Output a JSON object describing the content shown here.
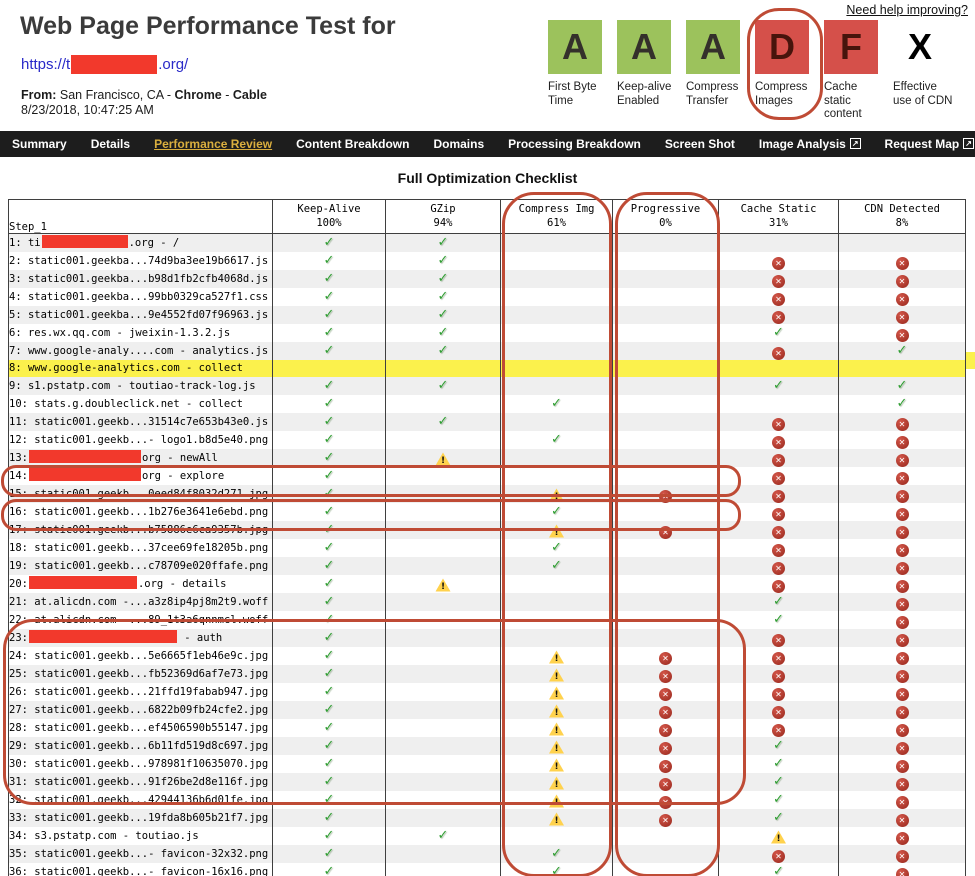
{
  "colors": {
    "annotation_red": "#bf4b35",
    "redaction_red": "#f2392c",
    "highlight_yellow": "#fbf14c",
    "grade_green": "#9cc25c",
    "grade_red": "#d5504a",
    "check_green": "#2f9e32",
    "error_red": "#96271c",
    "warn_yellow": "#ffd24d",
    "nav_bg": "#1d1d1d",
    "nav_active_gold": "#d9ae3e",
    "link_blue": "#2929c8"
  },
  "icons": {
    "check": "✓",
    "error": "✕",
    "warn": "!",
    "external_link": "↗"
  },
  "header": {
    "title": "Web Page Performance Test for",
    "url_prefix": "https://t",
    "url_suffix": ".org/",
    "from_label": "From:",
    "from_location": " San Francisco, CA - ",
    "from_browser": "Chrome",
    "from_separator": " - ",
    "from_connection": "Cable",
    "datetime": "8/23/2018, 10:47:25 AM",
    "help_link": "Need help improving?"
  },
  "grades": [
    {
      "letter": "A",
      "label": "First Byte Time",
      "color": "#9cc25c",
      "letter_color": "#34302b"
    },
    {
      "letter": "A",
      "label": "Keep-alive Enabled",
      "color": "#9cc25c",
      "letter_color": "#34302b"
    },
    {
      "letter": "A",
      "label": "Compress Transfer",
      "color": "#9cc25c",
      "letter_color": "#34302b"
    },
    {
      "letter": "D",
      "label": "Compress Images",
      "color": "#d5504a",
      "letter_color": "#47140c",
      "circled": true
    },
    {
      "letter": "F",
      "label": "Cache static content",
      "color": "#d5504a",
      "letter_color": "#47140c"
    },
    {
      "letter": "X",
      "label": "Effective use of CDN",
      "color": "transparent",
      "letter_color": "#000000"
    }
  ],
  "nav": {
    "tabs": [
      {
        "label": "Summary"
      },
      {
        "label": "Details"
      },
      {
        "label": "Performance Review",
        "active": true
      },
      {
        "label": "Content Breakdown"
      },
      {
        "label": "Domains"
      },
      {
        "label": "Processing Breakdown"
      },
      {
        "label": "Screen Shot"
      },
      {
        "label": "Image Analysis",
        "external": true
      },
      {
        "label": "Request Map",
        "external": true
      }
    ]
  },
  "checklist": {
    "title": "Full Optimization Checklist",
    "step_label": "Step_1",
    "columns": [
      {
        "name": "Keep-Alive",
        "pct": "100%"
      },
      {
        "name": "GZip",
        "pct": "94%"
      },
      {
        "name": "Compress Img",
        "pct": "61%",
        "circled": true
      },
      {
        "name": "Progressive",
        "pct": "0%",
        "circled": true
      },
      {
        "name": "Cache Static",
        "pct": "31%"
      },
      {
        "name": "CDN Detected",
        "pct": "8%"
      }
    ],
    "rows": [
      {
        "pre": "1: ti",
        "redact": 86,
        "post": ".org - /",
        "cells": [
          "check",
          "check",
          "",
          "",
          "",
          ""
        ]
      },
      {
        "pre": "2: static001.geekba...74d9ba3ee19b6617.js",
        "cells": [
          "check",
          "check",
          "",
          "",
          "error",
          "error"
        ]
      },
      {
        "pre": "3: static001.geekba...b98d1fb2cfb4068d.js",
        "cells": [
          "check",
          "check",
          "",
          "",
          "error",
          "error"
        ]
      },
      {
        "pre": "4: static001.geekba...99bb0329ca527f1.css",
        "cells": [
          "check",
          "check",
          "",
          "",
          "error",
          "error"
        ]
      },
      {
        "pre": "5: static001.geekba...9e4552fd07f96963.js",
        "cells": [
          "check",
          "check",
          "",
          "",
          "error",
          "error"
        ]
      },
      {
        "pre": "6: res.wx.qq.com - jweixin-1.3.2.js",
        "cells": [
          "check",
          "check",
          "",
          "",
          "check",
          "error"
        ]
      },
      {
        "pre": "7: www.google-analy....com - analytics.js",
        "cells": [
          "check",
          "check",
          "",
          "",
          "error",
          "check"
        ]
      },
      {
        "pre": "8: www.google-analytics.com - collect",
        "cells": [
          "",
          "",
          "",
          "",
          "",
          ""
        ],
        "highlight": true
      },
      {
        "pre": "9: s1.pstatp.com - toutiao-track-log.js",
        "cells": [
          "check",
          "check",
          "",
          "",
          "check",
          "check"
        ]
      },
      {
        "pre": "10: stats.g.doubleclick.net - collect",
        "cells": [
          "check",
          "",
          "check",
          "",
          "",
          "check"
        ]
      },
      {
        "pre": "11: static001.geekb...31514c7e653b43e0.js",
        "cells": [
          "check",
          "check",
          "",
          "",
          "error",
          "error"
        ]
      },
      {
        "pre": "12: static001.geekb...- logo1.b8d5e40.png",
        "cells": [
          "check",
          "",
          "check",
          "",
          "error",
          "error"
        ]
      },
      {
        "pre": "13:",
        "redact": 112,
        "post": "org - newAll",
        "cells": [
          "check",
          "warn",
          "",
          "",
          "error",
          "error"
        ]
      },
      {
        "pre": "14:",
        "redact": 112,
        "post": "org - explore",
        "cells": [
          "check",
          "",
          "",
          "",
          "error",
          "error"
        ]
      },
      {
        "pre": "15: static001.geekb...0eed84f8032d271.jpg",
        "cells": [
          "check",
          "",
          "warn",
          "error",
          "error",
          "error"
        ],
        "circled": true
      },
      {
        "pre": "16: static001.geekb...1b276e3641e6ebd.png",
        "cells": [
          "check",
          "",
          "check",
          "",
          "error",
          "error"
        ]
      },
      {
        "pre": "17: static001.geekb...b75886e6ca9357b.jpg",
        "cells": [
          "check",
          "",
          "warn",
          "error",
          "error",
          "error"
        ],
        "circled": true
      },
      {
        "pre": "18: static001.geekb...37cee69fe18205b.png",
        "cells": [
          "check",
          "",
          "check",
          "",
          "error",
          "error"
        ]
      },
      {
        "pre": "19: static001.geekb...c78709e020ffafe.png",
        "cells": [
          "check",
          "",
          "check",
          "",
          "error",
          "error"
        ]
      },
      {
        "pre": "20:",
        "redact": 108,
        "post": ".org - details",
        "cells": [
          "check",
          "warn",
          "",
          "",
          "error",
          "error"
        ]
      },
      {
        "pre": "21: at.alicdn.com -...a3z8ip4pj8m2t9.woff",
        "cells": [
          "check",
          "",
          "",
          "",
          "check",
          "error"
        ]
      },
      {
        "pre": "22: at.alicdn.com -...89_1t3a6qnnmcl.woff",
        "cells": [
          "check",
          "",
          "",
          "",
          "check",
          "error"
        ]
      },
      {
        "pre": "23:",
        "redact": 148,
        "post": " - auth",
        "cells": [
          "check",
          "",
          "",
          "",
          "error",
          "error"
        ]
      },
      {
        "pre": "24: static001.geekb...5e6665f1eb46e9c.jpg",
        "cells": [
          "check",
          "",
          "warn",
          "error",
          "error",
          "error"
        ],
        "circled": true
      },
      {
        "pre": "25: static001.geekb...fb52369d6af7e73.jpg",
        "cells": [
          "check",
          "",
          "warn",
          "error",
          "error",
          "error"
        ],
        "circled": true
      },
      {
        "pre": "26: static001.geekb...21ffd19fabab947.jpg",
        "cells": [
          "check",
          "",
          "warn",
          "error",
          "error",
          "error"
        ],
        "circled": true
      },
      {
        "pre": "27: static001.geekb...6822b09fb24cfe2.jpg",
        "cells": [
          "check",
          "",
          "warn",
          "error",
          "error",
          "error"
        ],
        "circled": true
      },
      {
        "pre": "28: static001.geekb...ef4506590b55147.jpg",
        "cells": [
          "check",
          "",
          "warn",
          "error",
          "error",
          "error"
        ],
        "circled": true
      },
      {
        "pre": "29: static001.geekb...6b11fd519d8c697.jpg",
        "cells": [
          "check",
          "",
          "warn",
          "error",
          "check",
          "error"
        ],
        "circled": true
      },
      {
        "pre": "30: static001.geekb...978981f10635070.jpg",
        "cells": [
          "check",
          "",
          "warn",
          "error",
          "check",
          "error"
        ],
        "circled": true
      },
      {
        "pre": "31: static001.geekb...91f26be2d8e116f.jpg",
        "cells": [
          "check",
          "",
          "warn",
          "error",
          "check",
          "error"
        ],
        "circled": true
      },
      {
        "pre": "32: static001.geekb...42944136b6d01fe.jpg",
        "cells": [
          "check",
          "",
          "warn",
          "error",
          "check",
          "error"
        ],
        "circled": true
      },
      {
        "pre": "33: static001.geekb...19fda8b605b21f7.jpg",
        "cells": [
          "check",
          "",
          "warn",
          "error",
          "check",
          "error"
        ],
        "circled": true
      },
      {
        "pre": "34: s3.pstatp.com - toutiao.js",
        "cells": [
          "check",
          "check",
          "",
          "",
          "warn",
          "error"
        ]
      },
      {
        "pre": "35: static001.geekb...- favicon-32x32.png",
        "cells": [
          "check",
          "",
          "check",
          "",
          "error",
          "error"
        ]
      },
      {
        "pre": "36: static001.geekb...- favicon-16x16.png",
        "cells": [
          "check",
          "",
          "check",
          "",
          "check",
          "error"
        ]
      }
    ]
  }
}
